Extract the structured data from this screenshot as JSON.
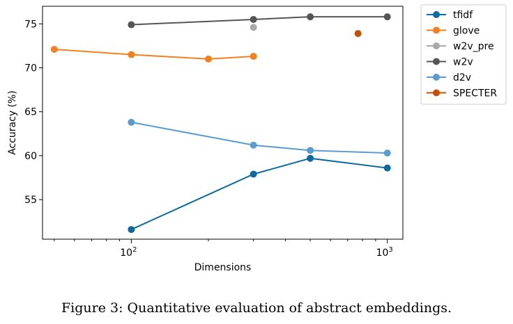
{
  "caption": "Figure 3: Quantitative evaluation of abstract embeddings.",
  "chart_data": {
    "type": "line",
    "xlabel": "Dimensions",
    "ylabel": "Accuracy (%)",
    "xscale": "log",
    "xlim": [
      45,
      1150
    ],
    "ylim": [
      50.5,
      77.0
    ],
    "yticks": [
      55,
      60,
      65,
      70,
      75
    ],
    "xticks_major": [
      100,
      1000
    ],
    "xticks_major_labels": [
      {
        "base": "10",
        "exp": "2"
      },
      {
        "base": "10",
        "exp": "3"
      }
    ],
    "xticks_minor": [
      50,
      60,
      70,
      80,
      90,
      200,
      300,
      400,
      500,
      600,
      700,
      800,
      900
    ],
    "grid": false,
    "legend_position": "outside-right-top",
    "series": [
      {
        "name": "tfidf",
        "color": "#0a6aa1",
        "points": [
          [
            100,
            51.6
          ],
          [
            300,
            57.9
          ],
          [
            500,
            59.7
          ],
          [
            1000,
            58.6
          ]
        ]
      },
      {
        "name": "glove",
        "color": "#f57f1e",
        "points": [
          [
            50,
            72.1
          ],
          [
            100,
            71.5
          ],
          [
            200,
            71.0
          ],
          [
            300,
            71.3
          ]
        ]
      },
      {
        "name": "w2v_pre",
        "color": "#a9a9a9",
        "points": [
          [
            300,
            74.6
          ]
        ]
      },
      {
        "name": "w2v",
        "color": "#555555",
        "points": [
          [
            100,
            74.9
          ],
          [
            300,
            75.5
          ],
          [
            500,
            75.8
          ],
          [
            1000,
            75.8
          ]
        ]
      },
      {
        "name": "d2v",
        "color": "#5b9bd0",
        "points": [
          [
            100,
            63.8
          ],
          [
            300,
            61.2
          ],
          [
            500,
            60.6
          ],
          [
            1000,
            60.3
          ]
        ]
      },
      {
        "name": "SPECTER",
        "color": "#c75000",
        "points": [
          [
            768,
            73.9
          ]
        ]
      }
    ]
  }
}
